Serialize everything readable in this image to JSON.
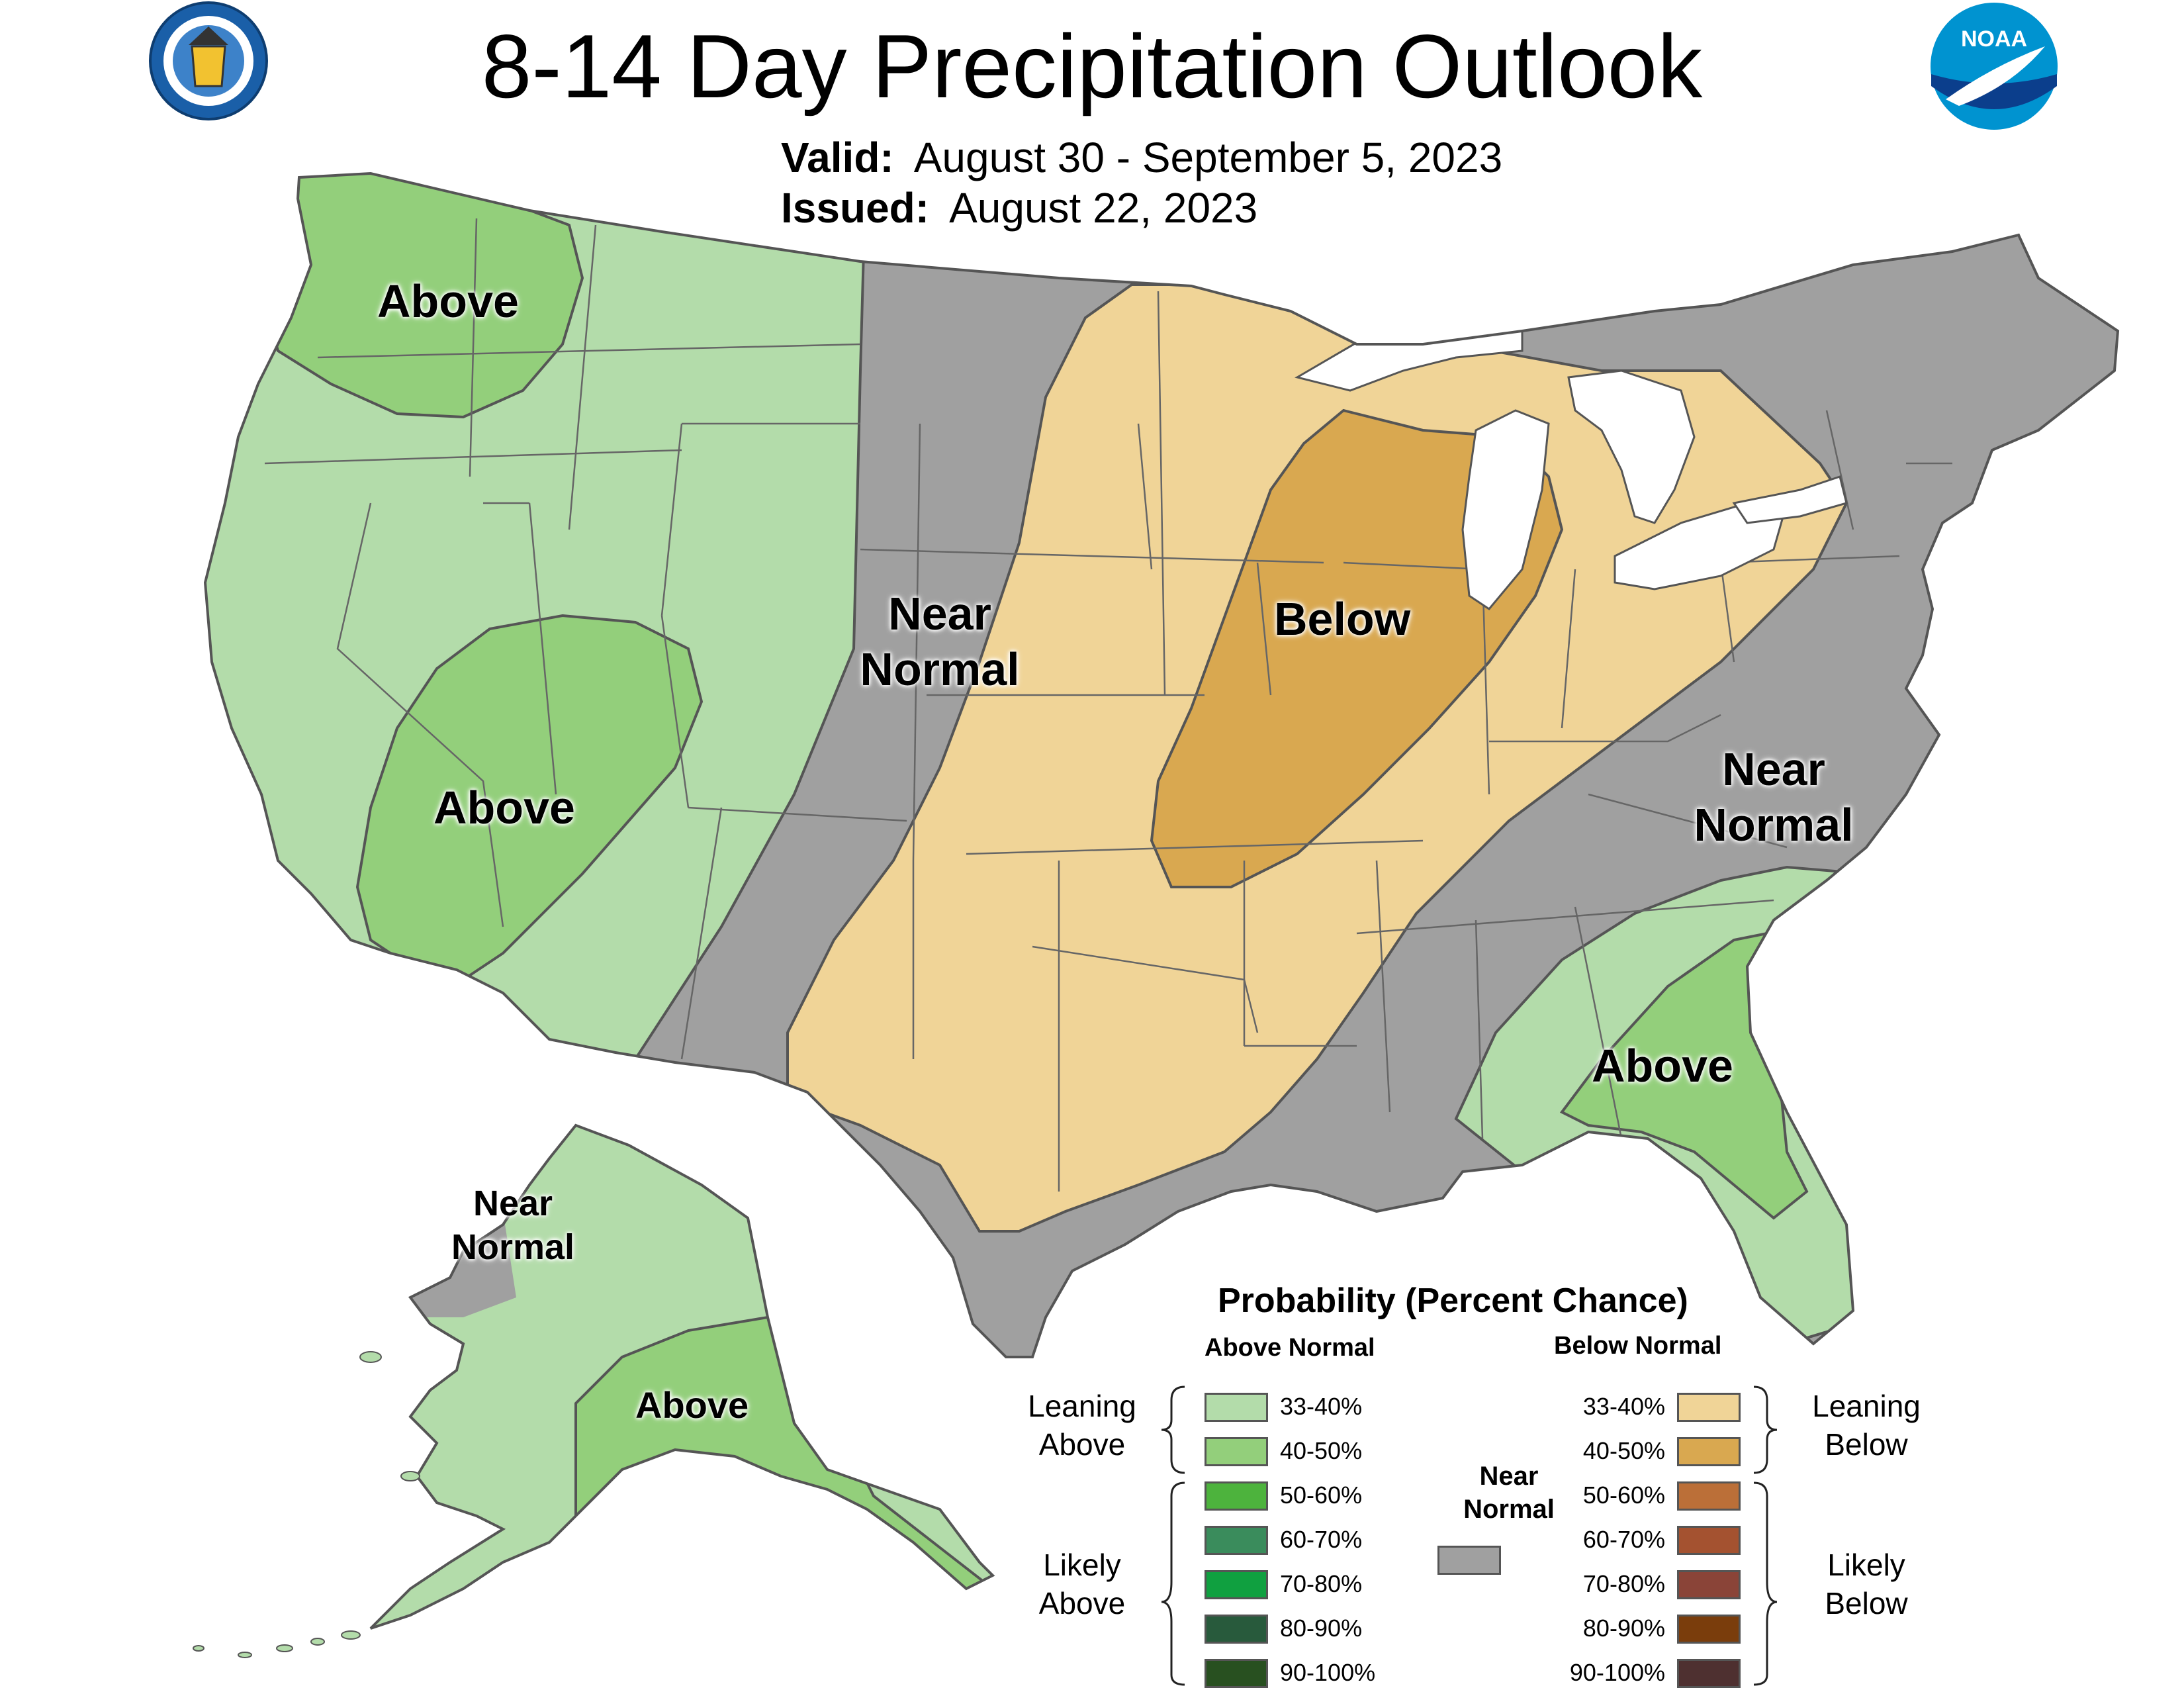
{
  "header": {
    "title": "8-14 Day Precipitation Outlook",
    "valid_label": "Valid:",
    "valid_value": "August 30 - September 5, 2023",
    "issued_label": "Issued:",
    "issued_value": "August 22, 2023"
  },
  "logos": {
    "left": "department-of-commerce-seal",
    "right": "noaa-logo",
    "noaa_text": "NOAA"
  },
  "map_labels": {
    "above_northwest": "Above",
    "above_southwest": "Above",
    "near_normal_plains_1": "Near",
    "near_normal_plains_2": "Normal",
    "below_midwest": "Below",
    "near_normal_east_1": "Near",
    "near_normal_east_2": "Normal",
    "above_southeast": "Above",
    "near_normal_alaska_1": "Near",
    "near_normal_alaska_2": "Normal",
    "above_alaska": "Above"
  },
  "legend": {
    "title": "Probability (Percent Chance)",
    "above_header": "Above Normal",
    "below_header": "Below Normal",
    "near_header_1": "Near",
    "near_header_2": "Normal",
    "leaning_above_1": "Leaning",
    "leaning_above_2": "Above",
    "likely_above_1": "Likely",
    "likely_above_2": "Above",
    "leaning_below_1": "Leaning",
    "leaning_below_2": "Below",
    "likely_below_1": "Likely",
    "likely_below_2": "Below",
    "above": [
      {
        "label": "33-40%",
        "color": "#b3dcaa"
      },
      {
        "label": "40-50%",
        "color": "#93cf7b"
      },
      {
        "label": "50-60%",
        "color": "#4db33d"
      },
      {
        "label": "60-70%",
        "color": "#3a8c5c"
      },
      {
        "label": "70-80%",
        "color": "#10a040"
      },
      {
        "label": "80-90%",
        "color": "#285a3c"
      },
      {
        "label": "90-100%",
        "color": "#285020"
      }
    ],
    "below": [
      {
        "label": "33-40%",
        "color": "#f0d497"
      },
      {
        "label": "40-50%",
        "color": "#d9a850"
      },
      {
        "label": "50-60%",
        "color": "#bb6f38"
      },
      {
        "label": "60-70%",
        "color": "#a45230"
      },
      {
        "label": "70-80%",
        "color": "#8a4438"
      },
      {
        "label": "80-90%",
        "color": "#7a3d0c"
      },
      {
        "label": "90-100%",
        "color": "#4e3030"
      }
    ],
    "near_color": "#a0a0a0"
  },
  "colors": {
    "near_normal": "#a0a0a0",
    "leaning_above": "#b3dcaa",
    "above_40_50": "#93cf7b",
    "leaning_below": "#f0d497",
    "below_40_50": "#d9a850",
    "great_lakes": "#ffffff",
    "border": "#555555"
  }
}
